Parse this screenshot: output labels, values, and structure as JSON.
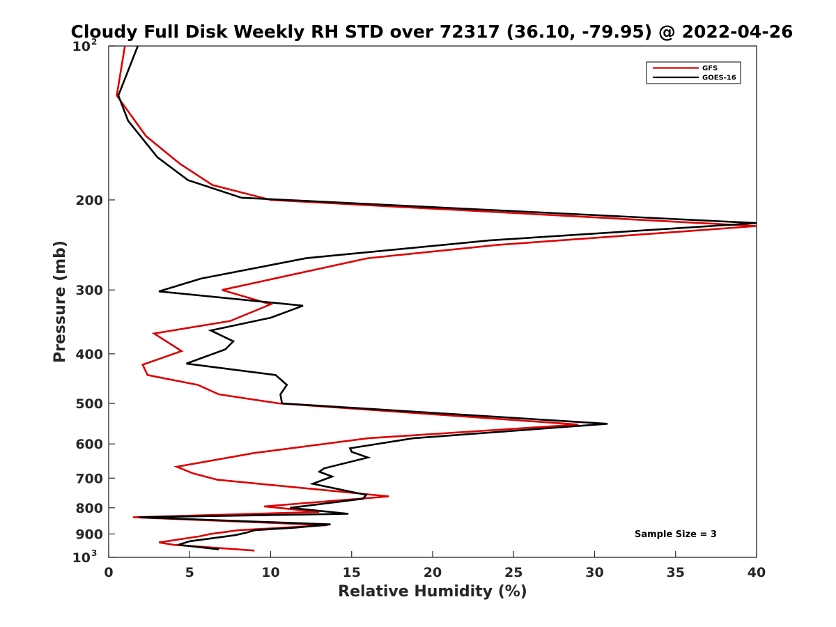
{
  "chart_data": {
    "type": "line",
    "title": "Cloudy Full Disk Weekly RH STD over 72317 (36.10, -79.95) @ 2022-04-26",
    "xlabel": "Relative Humidity (%)",
    "ylabel": "Pressure (mb)",
    "xlim": [
      0,
      40
    ],
    "ylim": [
      100,
      1000
    ],
    "y_scale": "log",
    "y_reversed": true,
    "x_ticks": [
      0,
      5,
      10,
      15,
      20,
      25,
      30,
      35,
      40
    ],
    "x_tick_labels": [
      "0",
      "5",
      "10",
      "15",
      "20",
      "25",
      "30",
      "35",
      "40"
    ],
    "y_ticks": [
      100,
      200,
      300,
      400,
      500,
      600,
      700,
      800,
      900,
      1000
    ],
    "y_tick_labels": [
      {
        "base": "10",
        "sup": "2"
      },
      {
        "base": "200",
        "sup": ""
      },
      {
        "base": "300",
        "sup": ""
      },
      {
        "base": "400",
        "sup": ""
      },
      {
        "base": "500",
        "sup": ""
      },
      {
        "base": "600",
        "sup": ""
      },
      {
        "base": "700",
        "sup": ""
      },
      {
        "base": "800",
        "sup": ""
      },
      {
        "base": "900",
        "sup": ""
      },
      {
        "base": "10",
        "sup": "3"
      }
    ],
    "grid": false,
    "legend_position": "top-right",
    "annotation": "Sample Size = 3",
    "series": [
      {
        "name": "GFS",
        "color": "#dd0000",
        "points": [
          [
            1.0,
            100
          ],
          [
            0.5,
            125
          ],
          [
            2.3,
            150
          ],
          [
            4.4,
            170
          ],
          [
            6.4,
            187
          ],
          [
            10.0,
            200
          ],
          [
            40.0,
            225
          ],
          [
            24.0,
            245
          ],
          [
            16.0,
            260
          ],
          [
            7.0,
            300
          ],
          [
            10.0,
            320
          ],
          [
            7.5,
            345
          ],
          [
            2.8,
            365
          ],
          [
            4.5,
            395
          ],
          [
            2.1,
            420
          ],
          [
            2.4,
            440
          ],
          [
            5.5,
            460
          ],
          [
            6.8,
            480
          ],
          [
            10.5,
            500
          ],
          [
            29.0,
            550
          ],
          [
            16.0,
            585
          ],
          [
            9.0,
            625
          ],
          [
            4.2,
            665
          ],
          [
            5.2,
            685
          ],
          [
            6.7,
            705
          ],
          [
            17.3,
            760
          ],
          [
            9.6,
            795
          ],
          [
            13.0,
            815
          ],
          [
            1.5,
            835
          ],
          [
            13.5,
            865
          ],
          [
            8.0,
            885
          ],
          [
            6.3,
            900
          ],
          [
            5.6,
            910
          ],
          [
            3.1,
            935
          ],
          [
            4.0,
            945
          ],
          [
            9.0,
            970
          ]
        ]
      },
      {
        "name": "GOES-16",
        "color": "#000000",
        "points": [
          [
            1.8,
            100
          ],
          [
            0.6,
            125
          ],
          [
            1.2,
            140
          ],
          [
            3.0,
            165
          ],
          [
            4.9,
            183
          ],
          [
            8.2,
            198
          ],
          [
            40.0,
            222
          ],
          [
            23.5,
            240
          ],
          [
            12.2,
            260
          ],
          [
            5.7,
            285
          ],
          [
            3.1,
            302
          ],
          [
            12.0,
            322
          ],
          [
            10.0,
            340
          ],
          [
            6.3,
            360
          ],
          [
            7.7,
            378
          ],
          [
            7.2,
            392
          ],
          [
            4.8,
            418
          ],
          [
            10.3,
            440
          ],
          [
            11.0,
            460
          ],
          [
            10.6,
            480
          ],
          [
            10.7,
            500
          ],
          [
            30.8,
            548
          ],
          [
            18.8,
            585
          ],
          [
            14.9,
            612
          ],
          [
            15.0,
            622
          ],
          [
            16.0,
            638
          ],
          [
            13.3,
            670
          ],
          [
            13.0,
            680
          ],
          [
            13.8,
            695
          ],
          [
            12.6,
            718
          ],
          [
            15.9,
            755
          ],
          [
            15.7,
            768
          ],
          [
            11.2,
            800
          ],
          [
            14.8,
            822
          ],
          [
            1.9,
            835
          ],
          [
            13.7,
            862
          ],
          [
            11.5,
            875
          ],
          [
            9.0,
            885
          ],
          [
            8.5,
            895
          ],
          [
            7.8,
            905
          ],
          [
            5.0,
            930
          ],
          [
            4.3,
            945
          ],
          [
            6.8,
            965
          ]
        ]
      }
    ]
  }
}
